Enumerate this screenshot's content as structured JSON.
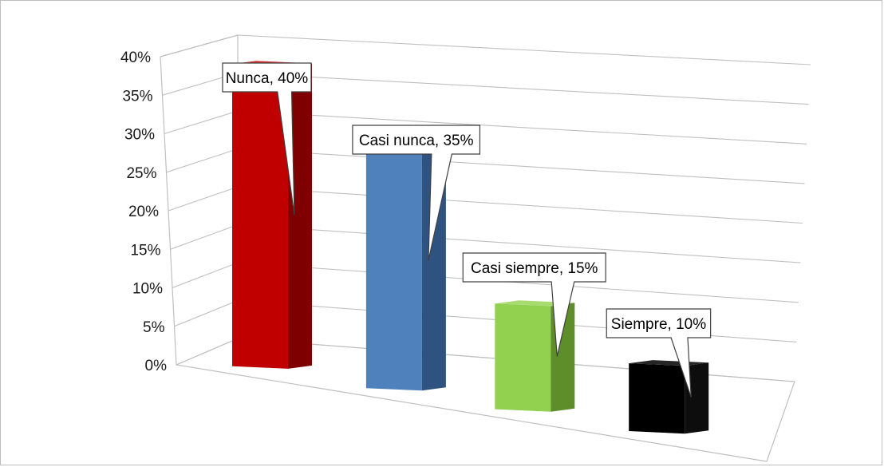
{
  "chart_data": {
    "type": "bar",
    "categories": [
      "Nunca",
      "Casi nunca",
      "Casi siempre",
      "Siempre"
    ],
    "values": [
      40,
      35,
      15,
      10
    ],
    "data_labels": [
      "Nunca, 40%",
      "Casi nunca, 35%",
      "Casi siempre, 15%",
      "Siempre, 10%"
    ],
    "y_ticks": [
      "0%",
      "5%",
      "10%",
      "15%",
      "20%",
      "25%",
      "30%",
      "35%",
      "40%"
    ],
    "ylim": [
      0,
      40
    ],
    "grid": true,
    "legend": "none",
    "style": "3d-column",
    "colors": [
      {
        "front": "#c00000",
        "side": "#7f0000",
        "top": "#d63030"
      },
      {
        "front": "#4f81bd",
        "side": "#2f5380",
        "top": "#6c95c8"
      },
      {
        "front": "#92d050",
        "side": "#5e8e2a",
        "top": "#a8dc70"
      },
      {
        "front": "#000000",
        "side": "#0d0d0d",
        "top": "#262626"
      }
    ]
  }
}
